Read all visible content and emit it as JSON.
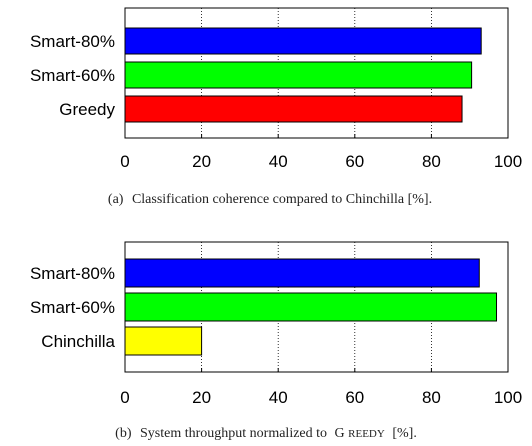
{
  "chart_data": [
    {
      "type": "bar",
      "orientation": "horizontal",
      "categories": [
        "Smart-80%",
        "Smart-60%",
        "Greedy"
      ],
      "values": [
        93,
        90.5,
        88
      ],
      "colors": [
        "#0000ff",
        "#00ff00",
        "#ff0000"
      ],
      "xlim": [
        0,
        100
      ],
      "xticks": [
        "0",
        "20",
        "40",
        "60",
        "80",
        "100"
      ],
      "grid": "vertical-dotted",
      "caption_prefix": "(a)",
      "caption": "Classification coherence compared to Chinchilla [%]."
    },
    {
      "type": "bar",
      "orientation": "horizontal",
      "categories": [
        "Smart-80%",
        "Smart-60%",
        "Chinchilla"
      ],
      "values": [
        92.5,
        97,
        20
      ],
      "colors": [
        "#0000ff",
        "#00ff00",
        "#ffff00"
      ],
      "xlim": [
        0,
        100
      ],
      "xticks": [
        "0",
        "20",
        "40",
        "60",
        "80",
        "100"
      ],
      "grid": "vertical-dotted",
      "caption_prefix": "(b)",
      "caption_before": "System throughput normalized to",
      "caption_smallcaps_first": "G",
      "caption_smallcaps_rest": "REEDY",
      "caption_after": "[%]."
    }
  ]
}
